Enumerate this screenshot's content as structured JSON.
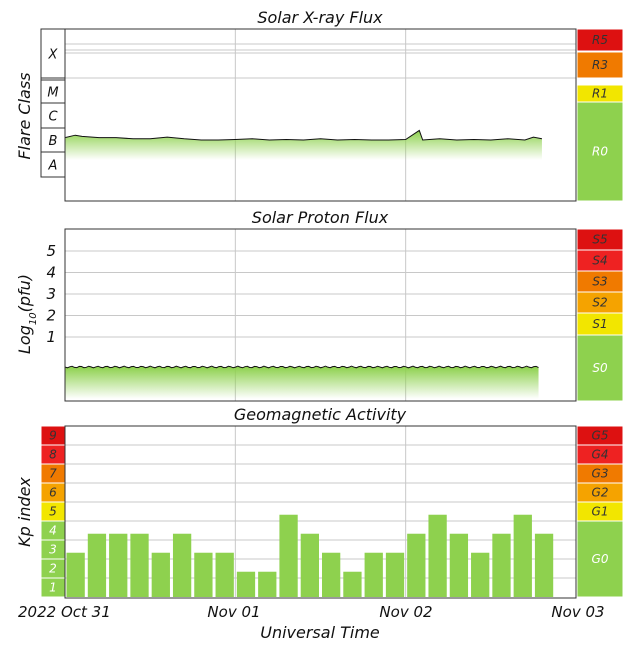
{
  "colors": {
    "bar": "#8ed14e",
    "trace": "#111111",
    "fill_top": "#8ed14e",
    "grid": "#c8c8c8",
    "scale_red": "#dd1111",
    "scale_red2": "#ee2222",
    "scale_orange": "#f07a00",
    "scale_orange2": "#f5a300",
    "scale_yellow": "#f2e600",
    "scale_green": "#8ed14e"
  },
  "xaxis": {
    "label": "Universal Time",
    "ticks": [
      "2022 Oct 31",
      "Nov 01",
      "Nov 02",
      "Nov 03"
    ]
  },
  "chart_data": [
    {
      "type": "area",
      "title": "Solar X-ray Flux",
      "ylabel": "Flare Class",
      "y_categories": [
        "A",
        "B",
        "C",
        "M",
        "X"
      ],
      "scale_levels": [
        "R5",
        "R3",
        "R1",
        "R0"
      ],
      "x_range_days": [
        0,
        3
      ],
      "x": [
        0.0,
        0.06,
        0.1,
        0.2,
        0.3,
        0.4,
        0.5,
        0.6,
        0.7,
        0.8,
        0.9,
        1.0,
        1.1,
        1.2,
        1.3,
        1.4,
        1.5,
        1.6,
        1.7,
        1.8,
        1.9,
        2.0,
        2.08,
        2.1,
        2.2,
        2.3,
        2.4,
        2.5,
        2.6,
        2.7,
        2.75,
        2.8
      ],
      "y_log_class": [
        1.6,
        1.7,
        1.65,
        1.6,
        1.6,
        1.55,
        1.55,
        1.62,
        1.55,
        1.5,
        1.5,
        1.52,
        1.55,
        1.5,
        1.52,
        1.5,
        1.55,
        1.5,
        1.52,
        1.5,
        1.5,
        1.52,
        1.9,
        1.5,
        1.55,
        1.5,
        1.52,
        1.5,
        1.55,
        1.5,
        1.62,
        1.55
      ]
    },
    {
      "type": "area",
      "title": "Solar Proton Flux",
      "ylabel_prefix": "Log",
      "ylabel_sub": "10",
      "ylabel_suffix": "(pfu)",
      "y_ticks": [
        "1",
        "2",
        "3",
        "4",
        "5"
      ],
      "scale_levels": [
        "S5",
        "S4",
        "S3",
        "S2",
        "S1",
        "S0"
      ],
      "x_range_days": [
        0,
        3
      ],
      "y_level_log_pfu": -0.3
    },
    {
      "type": "bar",
      "title": "Geomagnetic Activity",
      "ylabel": "Kp index",
      "kp_levels": [
        "9",
        "8",
        "7",
        "6",
        "5",
        "4",
        "3",
        "2",
        "1"
      ],
      "scale_levels": [
        "G5",
        "G4",
        "G3",
        "G2",
        "G1",
        "G0"
      ],
      "x_range_days": [
        0,
        3
      ],
      "kp_values": [
        2.33,
        3.33,
        3.33,
        3.33,
        2.33,
        3.33,
        2.33,
        2.33,
        1.33,
        1.33,
        4.33,
        3.33,
        2.33,
        1.33,
        2.33,
        2.33,
        3.33,
        4.33,
        3.33,
        2.33,
        3.33,
        4.33,
        3.33
      ]
    }
  ]
}
